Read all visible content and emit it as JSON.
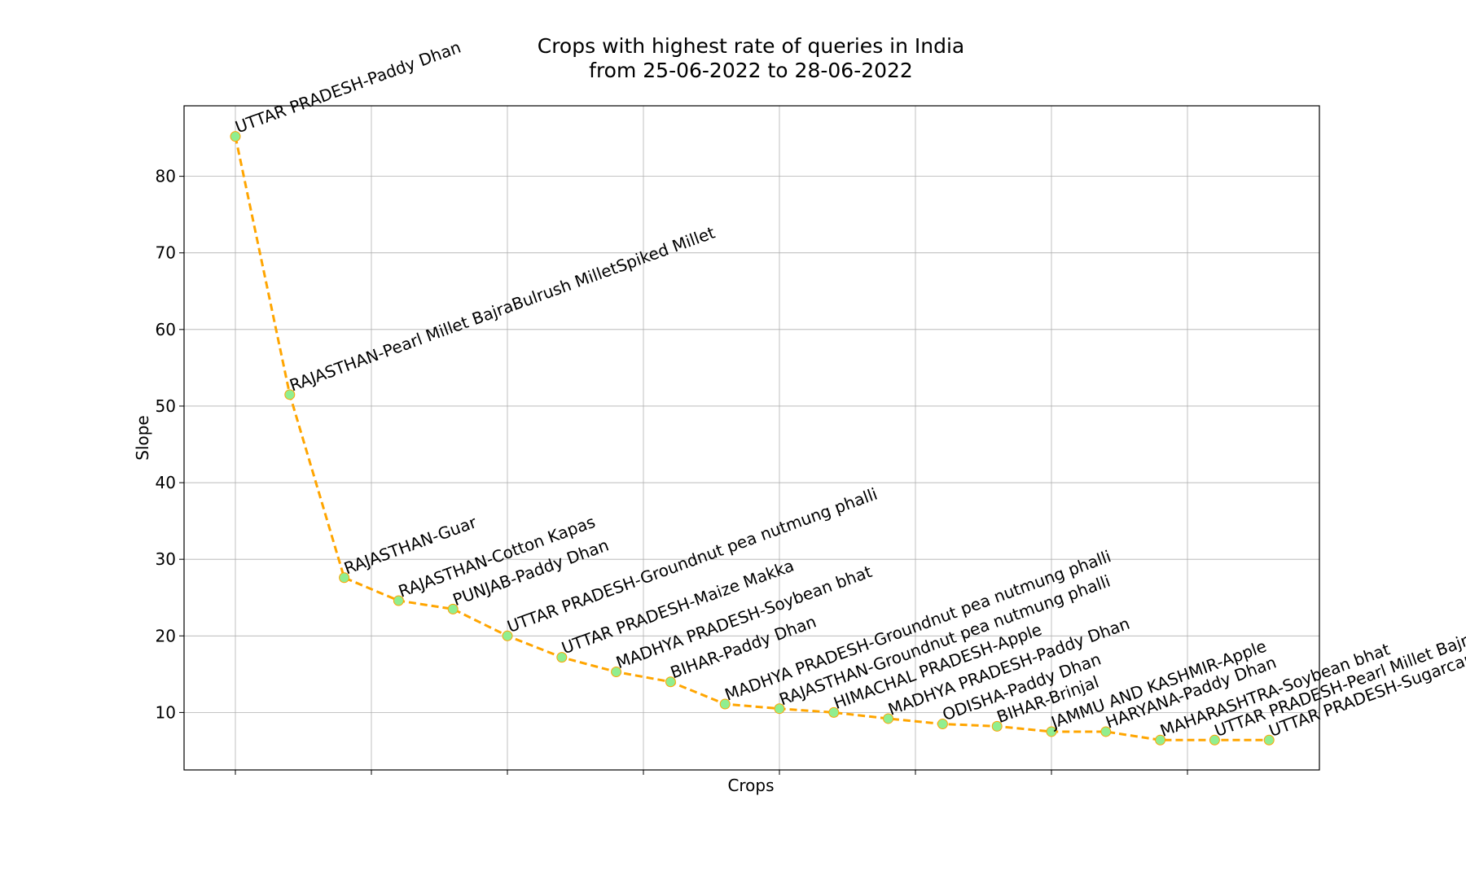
{
  "chart_data": {
    "type": "line",
    "title": "Crops with highest rate of queries in India",
    "subtitle": "from 25-06-2022 to 28-06-2022",
    "xlabel": "Crops",
    "ylabel": "Slope",
    "ylim": [
      2.5,
      89.2
    ],
    "yticks": [
      10,
      20,
      30,
      40,
      50,
      60,
      70,
      80
    ],
    "grid": true,
    "line_color": "#FFA500",
    "line_style": "dashed",
    "marker_fill": "#90EE90",
    "marker_edge": "#FFA500",
    "categories": [
      "UTTAR PRADESH-Paddy Dhan",
      "RAJASTHAN-Pearl Millet BajraBulrush MilletSpiked Millet",
      "RAJASTHAN-Guar",
      "RAJASTHAN-Cotton Kapas",
      "PUNJAB-Paddy Dhan",
      "UTTAR PRADESH-Groundnut pea nutmung phalli",
      "UTTAR PRADESH-Maize Makka",
      "MADHYA PRADESH-Soybean bhat",
      "BIHAR-Paddy Dhan",
      "MADHYA PRADESH-Groundnut pea nutmung phalli",
      "RAJASTHAN-Groundnut pea nutmung phalli",
      "HIMACHAL PRADESH-Apple",
      "MADHYA PRADESH-Paddy Dhan",
      "ODISHA-Paddy Dhan",
      "BIHAR-Brinjal",
      "JAMMU AND KASHMIR-Apple",
      "HARYANA-Paddy Dhan",
      "MAHARASHTRA-Soybean bhat",
      "UTTAR PRADESH-Pearl Millet BajraBulrush MilletSpiked Millet",
      "UTTAR PRADESH-Sugarcane"
    ],
    "values": [
      85.2,
      51.5,
      27.6,
      24.6,
      23.5,
      20.0,
      17.2,
      15.3,
      14.0,
      11.1,
      10.5,
      10.0,
      9.2,
      8.5,
      8.2,
      7.5,
      7.5,
      6.4,
      6.4,
      6.4
    ]
  }
}
